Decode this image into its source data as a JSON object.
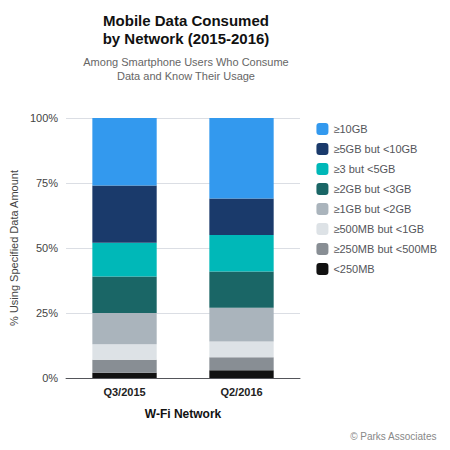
{
  "chart_data": {
    "type": "bar",
    "title": "Mobile Data Consumed\nby Network (2015-2016)",
    "subtitle": "Among Smartphone Users Who Consume\nData and Know Their Usage",
    "xlabel": "W-Fi Network",
    "ylabel": "% Using Specified Data Amount",
    "categories": [
      "Q3/2015",
      "Q2/2016"
    ],
    "series": [
      {
        "name": "≥10GB",
        "color": "#3399ee",
        "values": [
          26,
          31
        ]
      },
      {
        "name": "≥5GB but <10GB",
        "color": "#1a3a6b",
        "values": [
          22,
          14
        ]
      },
      {
        "name": "≥3 but <5GB",
        "color": "#00b8b8",
        "values": [
          13,
          14
        ]
      },
      {
        "name": "≥2GB but <3GB",
        "color": "#1a6666",
        "values": [
          14,
          14
        ]
      },
      {
        "name": "≥1GB but <2GB",
        "color": "#aab4bc",
        "values": [
          12,
          13
        ]
      },
      {
        "name": "≥500MB but <1GB",
        "color": "#dde2e6",
        "values": [
          6,
          6
        ]
      },
      {
        "name": "≥250MB but <500MB",
        "color": "#888e94",
        "values": [
          5,
          5
        ]
      },
      {
        "name": "<250MB",
        "color": "#111111",
        "values": [
          2,
          3
        ]
      }
    ],
    "ylim": [
      0,
      100
    ],
    "yticks": [
      {
        "value": 0,
        "label": "0%"
      },
      {
        "value": 25,
        "label": "25%"
      },
      {
        "value": 50,
        "label": "50%"
      },
      {
        "value": 75,
        "label": "75%"
      },
      {
        "value": 100,
        "label": "100%"
      }
    ],
    "grid": true,
    "stacked": true,
    "legend": "right",
    "annotations": [
      "© Parks Associates"
    ]
  }
}
